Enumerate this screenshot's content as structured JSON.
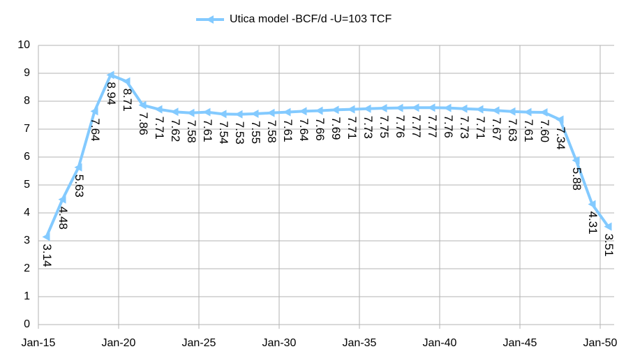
{
  "chart_data": {
    "type": "line",
    "x": [
      2015.5,
      2016.5,
      2017.5,
      2018.5,
      2019.5,
      2020.5,
      2021.5,
      2022.5,
      2023.5,
      2024.5,
      2025.5,
      2026.5,
      2027.5,
      2028.5,
      2029.5,
      2030.5,
      2031.5,
      2032.5,
      2033.5,
      2034.5,
      2035.5,
      2036.5,
      2037.5,
      2038.5,
      2039.5,
      2040.5,
      2041.5,
      2042.5,
      2043.5,
      2044.5,
      2045.5,
      2046.5,
      2047.5,
      2048.5,
      2049.5,
      2050.5
    ],
    "series": [
      {
        "name": "Utica model -BCF/d -U=103 TCF",
        "color": "#83caff",
        "values": [
          3.14,
          4.48,
          5.63,
          7.64,
          8.94,
          8.71,
          7.86,
          7.71,
          7.62,
          7.58,
          7.61,
          7.54,
          7.53,
          7.55,
          7.58,
          7.61,
          7.64,
          7.66,
          7.69,
          7.71,
          7.73,
          7.75,
          7.76,
          7.77,
          7.77,
          7.76,
          7.73,
          7.71,
          7.67,
          7.63,
          7.61,
          7.6,
          7.34,
          5.88,
          4.31,
          3.51
        ],
        "value_labels": [
          "3.14",
          "4.48",
          "5.63",
          "7.64",
          "8.94",
          "8.71",
          "7.86",
          "7.71",
          "7.62",
          "7.58",
          "7.61",
          "7.54",
          "7.53",
          "7.55",
          "7.58",
          "7.61",
          "7.64",
          "7.66",
          "7.69",
          "7.71",
          "7.73",
          "7.75",
          "7.76",
          "7.77",
          "7.77",
          "7.76",
          "7.73",
          "7.71",
          "7.67",
          "7.63",
          "7.61",
          "7.60",
          "7.34",
          "5.88",
          "4.31",
          "3.51"
        ]
      }
    ],
    "xlim": [
      2015,
      2050.87
    ],
    "xticks": [
      {
        "value": 2015,
        "label": "Jan-15"
      },
      {
        "value": 2020,
        "label": "Jan-20"
      },
      {
        "value": 2025,
        "label": "Jan-25"
      },
      {
        "value": 2030,
        "label": "Jan-30"
      },
      {
        "value": 2035,
        "label": "Jan-35"
      },
      {
        "value": 2040,
        "label": "Jan-40"
      },
      {
        "value": 2045,
        "label": "Jan-45"
      },
      {
        "value": 2050,
        "label": "Jan-50"
      }
    ],
    "ylim": [
      0,
      10
    ],
    "yticks": [
      0,
      1,
      2,
      3,
      4,
      5,
      6,
      7,
      8,
      9,
      10
    ],
    "grid": true,
    "legend": "top"
  }
}
